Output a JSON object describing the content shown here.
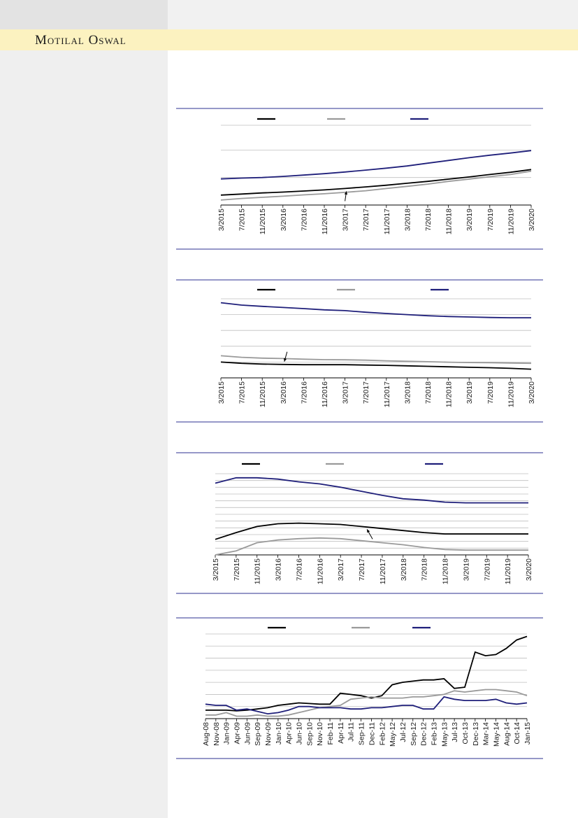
{
  "header": {
    "brand": "Motilal Oswal"
  },
  "colors": {
    "black_series": "#000000",
    "grey_series": "#9a9a9a",
    "navy_series": "#1f1f7a",
    "rule": "#2e3192",
    "grid": "#bfbfbf"
  },
  "chart_data": [
    {
      "type": "line",
      "title": "",
      "x_labels": [
        "3/2015",
        "7/2015",
        "11/2015",
        "3/2016",
        "7/2016",
        "11/2016",
        "3/2017",
        "7/2017",
        "11/2017",
        "3/2018",
        "7/2018",
        "11/2018",
        "3/2019",
        "7/2019",
        "11/2019",
        "3/2020"
      ],
      "series": [
        {
          "color": "#000000",
          "values": [
            0.36,
            0.4,
            0.44,
            0.47,
            0.51,
            0.55,
            0.6,
            0.66,
            0.72,
            0.79,
            0.86,
            0.94,
            1.02,
            1.11,
            1.19,
            1.29
          ]
        },
        {
          "color": "#9a9a9a",
          "values": [
            0.18,
            0.24,
            0.28,
            0.32,
            0.37,
            0.41,
            0.46,
            0.52,
            0.6,
            0.68,
            0.76,
            0.86,
            0.94,
            1.03,
            1.11,
            1.23
          ]
        },
        {
          "color": "#1f1f7a",
          "values": [
            0.95,
            0.98,
            1.0,
            1.04,
            1.09,
            1.14,
            1.2,
            1.27,
            1.34,
            1.42,
            1.52,
            1.62,
            1.72,
            1.81,
            1.89,
            1.98
          ]
        }
      ],
      "ylim": [
        0,
        2.9
      ],
      "gridlines": [
        1,
        2,
        2.9
      ],
      "annotation_arrow_at": "3/2017"
    },
    {
      "type": "line",
      "title": "",
      "x_labels": [
        "3/2015",
        "7/2015",
        "11/2015",
        "3/2016",
        "7/2016",
        "11/2016",
        "3/2017",
        "7/2017",
        "11/2017",
        "3/2018",
        "7/2018",
        "11/2018",
        "3/2019",
        "7/2019",
        "11/2019",
        "3/2020"
      ],
      "series": [
        {
          "color": "#000000",
          "values": [
            1.0,
            0.92,
            0.87,
            0.85,
            0.83,
            0.83,
            0.83,
            0.81,
            0.79,
            0.76,
            0.73,
            0.7,
            0.67,
            0.64,
            0.6,
            0.55
          ]
        },
        {
          "color": "#9a9a9a",
          "values": [
            1.4,
            1.3,
            1.25,
            1.22,
            1.18,
            1.15,
            1.14,
            1.12,
            1.08,
            1.05,
            1.02,
            0.99,
            0.97,
            0.96,
            0.94,
            0.92
          ]
        },
        {
          "color": "#1f1f7a",
          "values": [
            4.75,
            4.6,
            4.52,
            4.45,
            4.38,
            4.3,
            4.25,
            4.15,
            4.07,
            4.0,
            3.93,
            3.88,
            3.85,
            3.82,
            3.8,
            3.8
          ]
        }
      ],
      "ylim": [
        0,
        5
      ],
      "gridlines": [
        1,
        2,
        3,
        4,
        5
      ],
      "annotation_arrow_at": "3/2016"
    },
    {
      "type": "line",
      "title": "",
      "x_labels": [
        "3/2015",
        "7/2015",
        "11/2015",
        "3/2016",
        "7/2016",
        "11/2016",
        "3/2017",
        "7/2017",
        "11/2017",
        "3/2018",
        "7/2018",
        "11/2018",
        "3/2019",
        "7/2019",
        "11/2019",
        "3/2020"
      ],
      "series": [
        {
          "color": "#000000",
          "values": [
            2.3,
            3.3,
            4.2,
            4.6,
            4.7,
            4.6,
            4.5,
            4.2,
            3.9,
            3.6,
            3.3,
            3.1,
            3.1,
            3.1,
            3.1,
            3.1
          ]
        },
        {
          "color": "#9a9a9a",
          "values": [
            0.0,
            0.6,
            1.8,
            2.2,
            2.4,
            2.5,
            2.4,
            2.1,
            1.8,
            1.5,
            1.1,
            0.8,
            0.7,
            0.7,
            0.7,
            0.7
          ]
        },
        {
          "color": "#1f1f7a",
          "values": [
            10.6,
            11.4,
            11.4,
            11.2,
            10.8,
            10.5,
            10.0,
            9.4,
            8.8,
            8.3,
            8.1,
            7.8,
            7.7,
            7.7,
            7.7,
            7.7
          ]
        }
      ],
      "ylim": [
        0,
        12
      ],
      "gridlines": [
        1,
        2,
        3,
        4,
        5,
        6,
        7,
        8,
        9,
        10,
        11,
        12
      ],
      "annotation_arrow_at": "7/2017"
    },
    {
      "type": "line",
      "title": "",
      "x_labels": [
        "Aug-08",
        "Nov-08",
        "Jan-09",
        "Apr-09",
        "Jun-09",
        "Sep-09",
        "Nov-09",
        "Jan-10",
        "Apr-10",
        "Jun-10",
        "Sep-10",
        "Nov-10",
        "Feb-11",
        "Apr-11",
        "Jul-11",
        "Sep-11",
        "Dec-11",
        "Feb-12",
        "May-12",
        "Jul-12",
        "Sep-12",
        "Dec-12",
        "Feb-13",
        "May-13",
        "Jul-13",
        "Oct-13",
        "Dec-13",
        "Mar-14",
        "May-14",
        "Aug-14",
        "Oct-14",
        "Jan-15"
      ],
      "series": [
        {
          "color": "#000000",
          "values": [
            0.7,
            0.7,
            0.7,
            0.65,
            0.7,
            0.8,
            0.9,
            1.1,
            1.2,
            1.3,
            1.25,
            1.2,
            1.2,
            2.1,
            2.0,
            1.9,
            1.7,
            1.9,
            2.8,
            3.0,
            3.1,
            3.2,
            3.2,
            3.3,
            2.5,
            2.6,
            5.5,
            5.2,
            5.3,
            5.8,
            6.5,
            6.8
          ]
        },
        {
          "color": "#9a9a9a",
          "values": [
            0.3,
            0.3,
            0.5,
            0.2,
            0.2,
            0.3,
            0.2,
            0.2,
            0.3,
            0.5,
            0.7,
            0.9,
            1.0,
            1.1,
            1.6,
            1.7,
            1.8,
            1.7,
            1.7,
            1.7,
            1.8,
            1.8,
            1.9,
            2.0,
            2.3,
            2.2,
            2.3,
            2.4,
            2.4,
            2.3,
            2.2,
            1.9
          ]
        },
        {
          "color": "#1f1f7a",
          "values": [
            1.2,
            1.1,
            1.1,
            0.7,
            0.8,
            0.6,
            0.4,
            0.5,
            0.7,
            1.0,
            1.0,
            0.9,
            0.9,
            0.9,
            0.8,
            0.8,
            0.9,
            0.9,
            1.0,
            1.1,
            1.1,
            0.8,
            0.8,
            1.8,
            1.6,
            1.5,
            1.5,
            1.5,
            1.6,
            1.3,
            1.2,
            1.3
          ]
        }
      ],
      "ylim": [
        0,
        7
      ],
      "gridlines": [
        1,
        2,
        3,
        4,
        5,
        6,
        7
      ]
    }
  ]
}
